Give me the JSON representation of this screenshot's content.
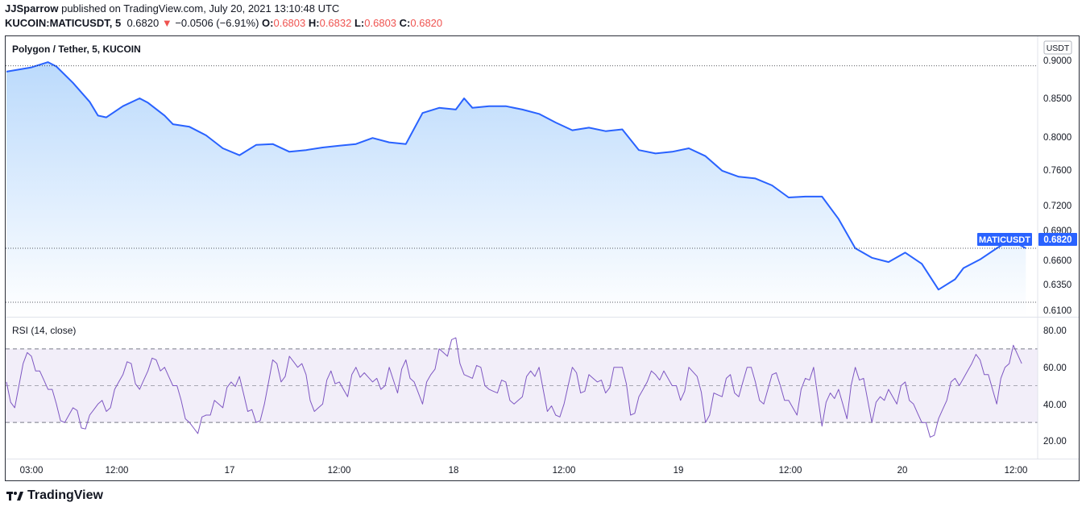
{
  "header": {
    "author": "JJSparrow",
    "published_text": " published on TradingView.com, July 20, 2021 13:10:48 UTC",
    "symbol": "KUCOIN:MATICUSDT, 5",
    "last": "0.6820",
    "change_arrow": "▼",
    "change": "−0.0506 (−6.91%)",
    "o_label": "O:",
    "o_value": "0.6803",
    "h_label": "H:",
    "h_value": "0.6832",
    "l_label": "L:",
    "l_value": "0.6803",
    "c_label": "C:",
    "c_value": "0.6820"
  },
  "footer": {
    "logo_text": "TradingView",
    "logo_icon": "tv-logo-icon"
  },
  "colors": {
    "price_line": "#2962ff",
    "area_top": "#bbdafc",
    "area_bottom": "#ffffff",
    "rsi_line": "#7e57c2",
    "rsi_band": "#ede7f6",
    "badge_bg": "#2962ff"
  },
  "chart_data": [
    {
      "type": "area",
      "title": "Polygon / Tether, 5, KUCOIN",
      "currency_label": "USDT",
      "price_tag_label": "MATICUSDT",
      "price_tag_value": "0.6820",
      "ylim": [
        0.6,
        0.91
      ],
      "y_ticks": [
        "0.9000",
        "0.8500",
        "0.8000",
        "0.7600",
        "0.7200",
        "0.6900",
        "0.6600",
        "0.6350",
        "0.6100"
      ],
      "x_ticks": [
        "03:00",
        "12:00",
        "17",
        "12:00",
        "18",
        "12:00",
        "19",
        "12:00",
        "20",
        "12:00"
      ],
      "series": [
        {
          "x_hours": [
            0,
            3,
            5,
            6,
            8,
            10,
            11,
            12,
            14,
            16,
            17,
            19,
            20,
            22,
            24,
            26,
            28,
            30,
            32,
            34,
            36,
            38,
            40,
            42,
            44,
            46,
            48,
            50,
            52,
            54,
            55,
            56,
            58,
            60,
            62,
            64,
            66,
            68,
            70,
            72,
            74,
            76,
            78,
            80,
            82,
            84,
            86,
            88,
            90,
            92,
            94,
            96,
            98,
            100,
            102,
            104,
            106,
            108,
            110,
            112,
            114,
            115,
            117,
            119,
            120,
            121,
            122.5
          ],
          "values": [
            0.887,
            0.892,
            0.898,
            0.893,
            0.874,
            0.852,
            0.836,
            0.834,
            0.847,
            0.856,
            0.851,
            0.836,
            0.826,
            0.823,
            0.813,
            0.798,
            0.79,
            0.802,
            0.803,
            0.794,
            0.796,
            0.799,
            0.801,
            0.803,
            0.81,
            0.805,
            0.803,
            0.839,
            0.845,
            0.843,
            0.856,
            0.845,
            0.847,
            0.847,
            0.843,
            0.838,
            0.828,
            0.819,
            0.822,
            0.818,
            0.82,
            0.796,
            0.792,
            0.794,
            0.798,
            0.789,
            0.772,
            0.765,
            0.763,
            0.755,
            0.741,
            0.742,
            0.742,
            0.716,
            0.682,
            0.671,
            0.666,
            0.677,
            0.664,
            0.634,
            0.646,
            0.659,
            0.669,
            0.682,
            0.688,
            0.69,
            0.682
          ]
        }
      ]
    },
    {
      "type": "line",
      "title": "RSI (14, close)",
      "ylim": [
        15,
        82
      ],
      "y_ticks": [
        "80.00",
        "60.00",
        "40.00",
        "20.00"
      ],
      "upper_band": 70,
      "middle_band": 50,
      "lower_band": 30,
      "series": [
        {
          "x_hours": [
            0,
            1,
            2,
            3,
            4,
            5,
            6,
            7,
            8,
            9,
            10,
            11,
            12,
            13,
            14,
            15,
            16,
            17,
            18,
            19,
            20,
            21,
            22,
            23,
            24,
            25,
            26,
            27,
            28,
            29,
            30,
            31,
            32,
            33,
            34,
            35,
            36,
            37,
            38,
            39,
            40,
            41,
            42,
            43,
            44,
            45,
            46,
            47,
            48,
            49,
            50,
            51,
            52,
            53,
            54,
            55,
            56,
            57,
            58,
            59,
            60,
            61,
            62,
            63,
            64,
            65,
            66,
            67,
            68,
            69,
            70,
            71,
            72,
            73,
            74,
            75,
            76,
            77,
            78,
            79,
            80,
            81,
            82,
            83,
            84,
            85,
            86,
            87,
            88,
            89,
            90,
            91,
            92,
            93,
            94,
            95,
            96,
            97,
            98,
            99,
            100,
            101,
            102,
            103,
            104,
            105,
            106,
            107,
            108,
            109,
            110,
            111,
            112,
            113,
            114,
            115,
            116,
            117,
            118,
            119,
            120,
            121,
            122
          ],
          "values": [
            52,
            38,
            62,
            66,
            58,
            48,
            40,
            30,
            38,
            27,
            34,
            40,
            36,
            48,
            56,
            62,
            48,
            58,
            64,
            60,
            50,
            42,
            30,
            24,
            34,
            42,
            38,
            52,
            55,
            36,
            30,
            40,
            64,
            52,
            66,
            60,
            56,
            36,
            40,
            58,
            52,
            44,
            60,
            57,
            52,
            48,
            60,
            46,
            64,
            52,
            40,
            56,
            70,
            66,
            76,
            56,
            54,
            60,
            48,
            46,
            52,
            40,
            44,
            58,
            60,
            36,
            34,
            40,
            60,
            46,
            56,
            52,
            46,
            60,
            60,
            34,
            44,
            52,
            56,
            58,
            50,
            42,
            60,
            55,
            30,
            46,
            44,
            56,
            44,
            60,
            52,
            40,
            56,
            50,
            42,
            34,
            54,
            60,
            28,
            46,
            48,
            32,
            60,
            54,
            30,
            44,
            48,
            40,
            52,
            40,
            30,
            22,
            32,
            42,
            54,
            54,
            62,
            64,
            56,
            40,
            60,
            72,
            62
          ]
        }
      ]
    }
  ]
}
